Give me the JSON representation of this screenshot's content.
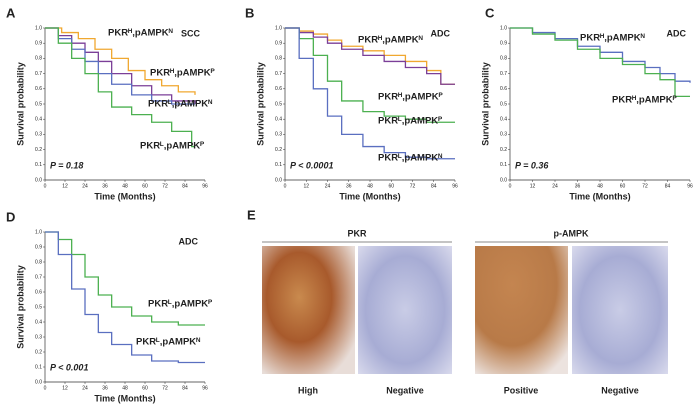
{
  "chart_data": [
    {
      "type": "step",
      "panel_label": "A",
      "label": "SCC",
      "p_value": "P = 0.18",
      "x_label": "Time (Months)",
      "y_label": "Survival probability",
      "xlim": [
        0,
        96
      ],
      "xticks": [
        0,
        12,
        24,
        36,
        48,
        60,
        72,
        84,
        96
      ],
      "ylim": [
        0,
        1
      ],
      "yticks": [
        {
          "value": 0,
          "label": "0.0"
        },
        0.1,
        0.2,
        0.3,
        0.4,
        0.5,
        0.6,
        0.7,
        0.8,
        0.9,
        {
          "value": 1,
          "label": "1.0"
        }
      ],
      "series": [
        {
          "name": "PKRᴴ,pAMPKᴺ",
          "color": "#f0a830",
          "x": [
            0,
            10,
            20,
            30,
            40,
            50,
            60,
            70,
            80,
            90
          ],
          "values": [
            1,
            0.97,
            0.93,
            0.86,
            0.8,
            0.72,
            0.66,
            0.62,
            0.58,
            0.56
          ]
        },
        {
          "name": "PKRᴴ,pAMPKᴾ",
          "color": "#7b3f98",
          "x": [
            0,
            8,
            16,
            24,
            32,
            40,
            52,
            64,
            76,
            90
          ],
          "values": [
            1,
            0.95,
            0.9,
            0.84,
            0.78,
            0.7,
            0.62,
            0.56,
            0.52,
            0.5
          ]
        },
        {
          "name": "PKRᴸ,pAMPKᴺ",
          "color": "#5a6fc0",
          "x": [
            0,
            8,
            16,
            24,
            32,
            40,
            52,
            64,
            76,
            90
          ],
          "values": [
            1,
            0.93,
            0.86,
            0.78,
            0.7,
            0.63,
            0.56,
            0.52,
            0.5,
            0.5
          ]
        },
        {
          "name": "PKRᴸ,pAMPKᴾ",
          "color": "#4cb050",
          "x": [
            0,
            8,
            16,
            24,
            32,
            40,
            52,
            64,
            76,
            88,
            90
          ],
          "values": [
            1,
            0.9,
            0.8,
            0.7,
            0.58,
            0.48,
            0.43,
            0.38,
            0.32,
            0.22,
            0.22
          ]
        }
      ]
    },
    {
      "type": "step",
      "panel_label": "B",
      "label": "ADC",
      "p_value": "P < 0.0001",
      "x_label": "Time (Months)",
      "y_label": "Survival probability",
      "xlim": [
        0,
        96
      ],
      "xticks": [
        0,
        12,
        24,
        36,
        48,
        60,
        72,
        84,
        96
      ],
      "ylim": [
        0,
        1
      ],
      "yticks": [
        {
          "value": 0,
          "label": "0.0"
        },
        0.1,
        0.2,
        0.3,
        0.4,
        0.5,
        0.6,
        0.7,
        0.8,
        0.9,
        {
          "value": 1,
          "label": "1.0"
        }
      ],
      "series": [
        {
          "name": "PKRᴴ,pAMPKᴺ",
          "color": "#f0a830",
          "x": [
            0,
            8,
            16,
            24,
            32,
            44,
            56,
            68,
            80,
            88,
            96
          ],
          "values": [
            1,
            0.98,
            0.96,
            0.92,
            0.88,
            0.85,
            0.82,
            0.78,
            0.72,
            0.63,
            0.63
          ]
        },
        {
          "name": "PKRᴴ,pAMPKᴾ",
          "color": "#7b3f98",
          "x": [
            0,
            8,
            16,
            24,
            32,
            44,
            56,
            68,
            80,
            88,
            96
          ],
          "values": [
            1,
            0.97,
            0.94,
            0.9,
            0.86,
            0.82,
            0.78,
            0.74,
            0.7,
            0.63,
            0.63
          ]
        },
        {
          "name": "PKRᴸ,pAMPKᴾ",
          "color": "#4cb050",
          "x": [
            0,
            8,
            16,
            24,
            32,
            44,
            56,
            68,
            80,
            96
          ],
          "values": [
            1,
            0.93,
            0.82,
            0.65,
            0.52,
            0.45,
            0.42,
            0.4,
            0.38,
            0.38
          ]
        },
        {
          "name": "PKRᴸ,pAMPKᴺ",
          "color": "#5a6fc0",
          "x": [
            0,
            8,
            16,
            24,
            32,
            44,
            56,
            68,
            80,
            96
          ],
          "values": [
            1,
            0.8,
            0.6,
            0.42,
            0.3,
            0.22,
            0.18,
            0.15,
            0.14,
            0.14
          ]
        }
      ]
    },
    {
      "type": "step",
      "panel_label": "C",
      "label": "ADC",
      "p_value": "P = 0.36",
      "x_label": "Time (Months)",
      "y_label": "Survival probability",
      "xlim": [
        0,
        96
      ],
      "xticks": [
        0,
        12,
        24,
        36,
        48,
        60,
        72,
        84,
        96
      ],
      "ylim": [
        0,
        1
      ],
      "yticks": [
        {
          "value": 0,
          "label": "0.0"
        },
        0.1,
        0.2,
        0.3,
        0.4,
        0.5,
        0.6,
        0.7,
        0.8,
        0.9,
        {
          "value": 1,
          "label": "1.0"
        }
      ],
      "series": [
        {
          "name": "PKRᴴ,pAMPKᴺ",
          "color": "#5a6fc0",
          "x": [
            0,
            12,
            24,
            36,
            48,
            60,
            72,
            80,
            88,
            96
          ],
          "values": [
            1,
            0.97,
            0.93,
            0.88,
            0.84,
            0.78,
            0.74,
            0.7,
            0.65,
            0.64
          ]
        },
        {
          "name": "PKRᴴ,pAMPKᴾ",
          "color": "#4cb050",
          "x": [
            0,
            12,
            24,
            36,
            48,
            60,
            72,
            80,
            88,
            96
          ],
          "values": [
            1,
            0.96,
            0.92,
            0.86,
            0.8,
            0.76,
            0.7,
            0.66,
            0.55,
            0.55
          ]
        }
      ]
    },
    {
      "type": "step",
      "panel_label": "D",
      "label": "ADC",
      "p_value": "P < 0.001",
      "x_label": "Time (Months)",
      "y_label": "Survival probability",
      "xlim": [
        0,
        96
      ],
      "xticks": [
        0,
        12,
        24,
        36,
        48,
        60,
        72,
        84,
        96
      ],
      "ylim": [
        0,
        1
      ],
      "yticks": [
        {
          "value": 0,
          "label": "0.0"
        },
        0.1,
        0.2,
        0.3,
        0.4,
        0.5,
        0.6,
        0.7,
        0.8,
        0.9,
        {
          "value": 1,
          "label": "1.0"
        }
      ],
      "series": [
        {
          "name": "PKRᴸ,pAMPKᴾ",
          "color": "#4cb050",
          "x": [
            0,
            8,
            16,
            24,
            32,
            40,
            52,
            64,
            80,
            96
          ],
          "values": [
            1,
            0.95,
            0.85,
            0.7,
            0.58,
            0.5,
            0.44,
            0.4,
            0.38,
            0.38
          ]
        },
        {
          "name": "PKRᴸ,pAMPKᴺ",
          "color": "#5a6fc0",
          "x": [
            0,
            8,
            16,
            24,
            32,
            40,
            52,
            64,
            80,
            96
          ],
          "values": [
            1,
            0.85,
            0.62,
            0.45,
            0.33,
            0.25,
            0.18,
            0.14,
            0.13,
            0.13
          ]
        }
      ]
    }
  ],
  "panel_e": {
    "panel_label": "E",
    "groups": [
      {
        "title": "PKR",
        "captions": [
          "High",
          "Negative"
        ]
      },
      {
        "title": "p-AMPK",
        "captions": [
          "Positive",
          "Negative"
        ]
      }
    ]
  }
}
